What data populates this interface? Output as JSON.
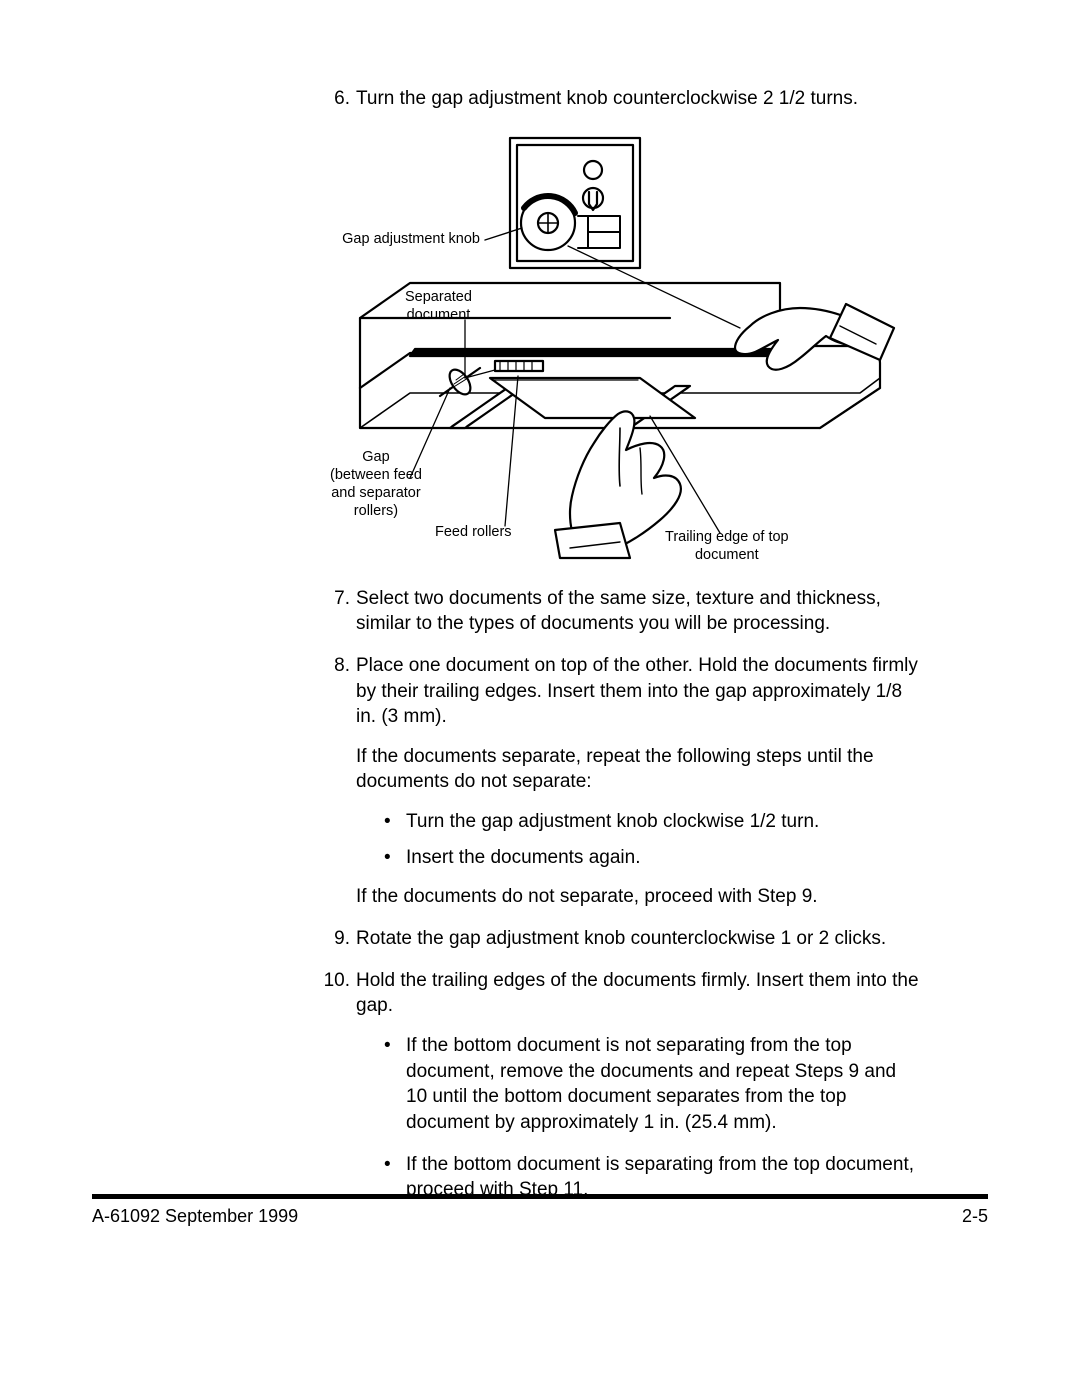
{
  "steps": {
    "s6": {
      "num": "6.",
      "text": "Turn the gap adjustment knob counterclockwise 2 1/2 turns."
    },
    "s7": {
      "num": "7.",
      "text": "Select two documents of the same size, texture and thickness, similar to the types of documents you will be processing."
    },
    "s8": {
      "num": "8.",
      "text": "Place one document on top of the other. Hold the documents firmly by their trailing edges. Insert them into the gap approximately 1/8 in. (3 mm).",
      "para1": "If the documents separate, repeat the following steps until the documents do not separate:",
      "b1": "Turn the gap adjustment knob clockwise 1/2 turn.",
      "b2": "Insert the documents again.",
      "para2": "If the documents do not separate, proceed with Step 9."
    },
    "s9": {
      "num": "9.",
      "text": "Rotate the gap adjustment knob counterclockwise 1 or 2 clicks."
    },
    "s10": {
      "num": "10.",
      "text": "Hold the trailing edges of the documents firmly.  Insert them into the gap.",
      "b1": "If the bottom document is not separating from the top document, remove the documents and repeat Steps 9 and 10 until the bottom document separates from the top document by approximately 1 in. (25.4 mm).",
      "b2": "If the bottom document is separating from the top document, proceed with Step 11."
    }
  },
  "figure": {
    "label_gap_knob": "Gap adjustment knob",
    "label_separated": "Separated\ndocument",
    "label_gap": "Gap\n(between feed\nand separator\nrollers)",
    "label_feed_rollers": "Feed rollers",
    "label_trailing": "Trailing edge of top\ndocument",
    "stroke": "#000000",
    "fill_bg": "#ffffff"
  },
  "footer": {
    "left": "A-61092  September 1999",
    "right": "2-5"
  },
  "colors": {
    "text": "#000000",
    "background": "#ffffff",
    "rule": "#000000"
  },
  "typography": {
    "body_pt": 14,
    "label_pt": 11,
    "family": "Arial"
  }
}
